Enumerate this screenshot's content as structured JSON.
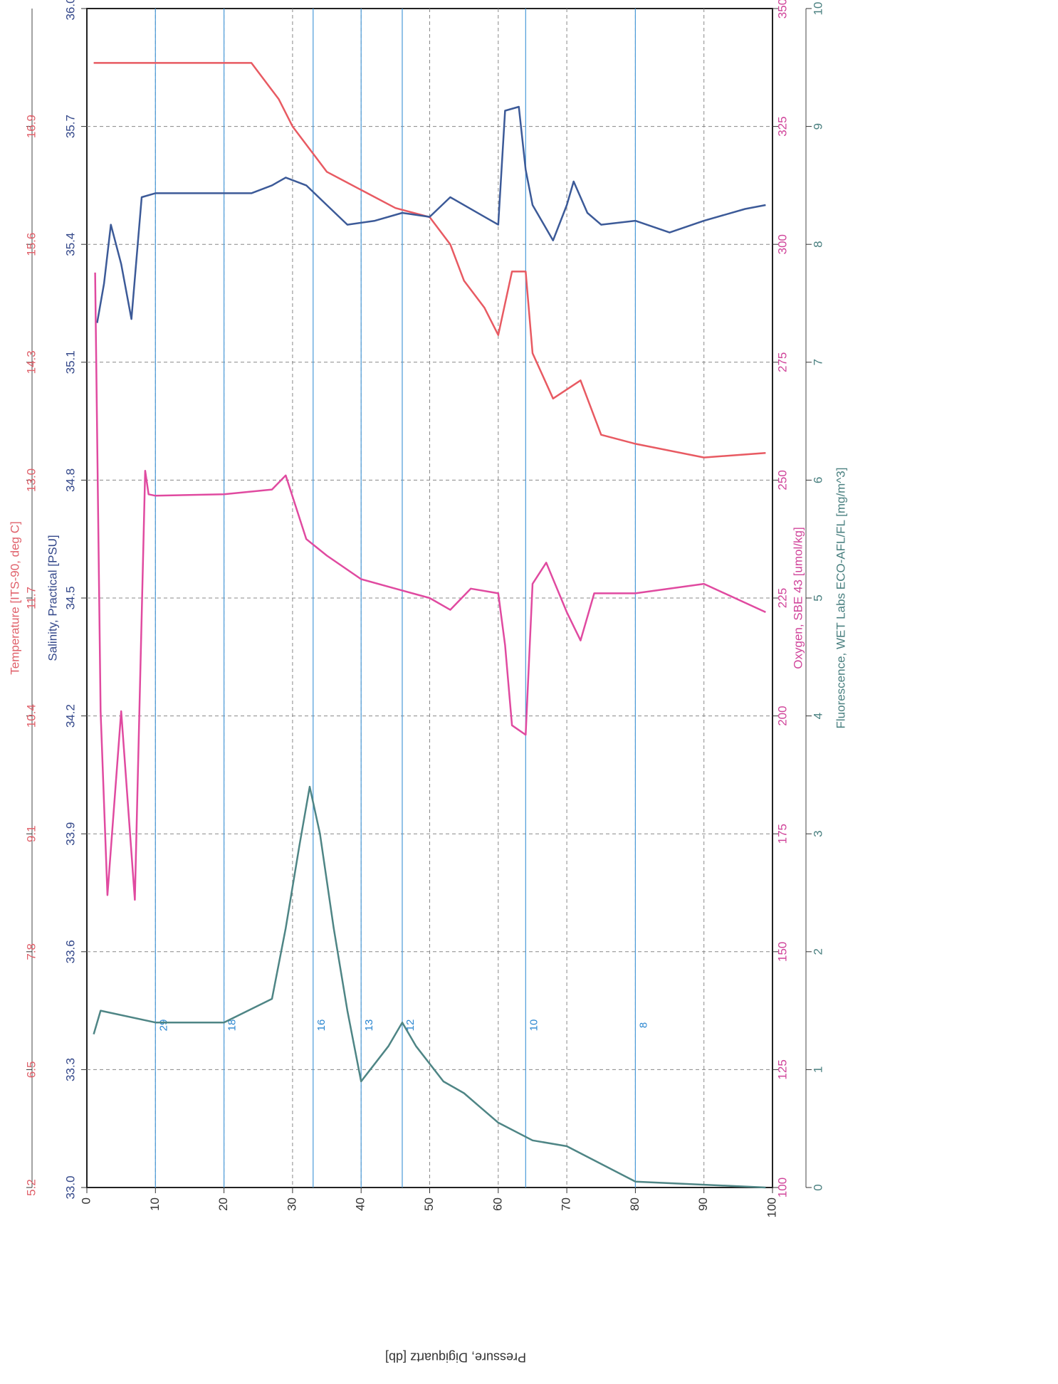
{
  "chart_data": {
    "type": "line",
    "xlabel": "Pressure, Digiquartz [db]",
    "xlim": [
      0,
      100
    ],
    "xticks": [
      0,
      10,
      20,
      30,
      40,
      50,
      60,
      70,
      80,
      90,
      100
    ],
    "grid": true,
    "axes": [
      {
        "label": "Temperature [ITS-90, deg C]",
        "color": "#e0606a",
        "lim": [
          5.2,
          18.2
        ],
        "ticks": [
          5.2,
          6.5,
          7.8,
          9.1,
          10.4,
          11.7,
          {
            "value": 13.0,
            "label": "13.0"
          },
          14.3,
          15.6,
          16.9
        ]
      },
      {
        "label": "Salinity, Practical [PSU]",
        "color": "#34488a",
        "lim": [
          33.0,
          36.0
        ],
        "ticks": [
          {
            "value": 33.0,
            "label": "33.0"
          },
          33.3,
          33.6,
          33.9,
          34.2,
          34.5,
          34.8,
          35.1,
          35.4,
          35.7,
          {
            "value": 36.0,
            "label": "36.0"
          }
        ]
      },
      {
        "label": "Oxygen, SBE 43 [umol/kg]",
        "color": "#d0449a",
        "lim": [
          100,
          350
        ],
        "ticks": [
          100,
          125,
          150,
          175,
          200,
          225,
          250,
          275,
          300,
          325,
          350
        ]
      },
      {
        "label": "Fluorescence, WET Labs ECO-AFL/FL [mg/m^3]",
        "color": "#4a8080",
        "lim": [
          0,
          10
        ],
        "ticks": [
          0,
          1,
          2,
          3,
          4,
          5,
          6,
          7,
          8,
          9,
          10
        ]
      }
    ],
    "series": [
      {
        "name": "Temperature",
        "axis": 0,
        "color": "#e85a62",
        "x": [
          1,
          10,
          24,
          28,
          30,
          35,
          40,
          45,
          50,
          53,
          55,
          58,
          60,
          62,
          64,
          65,
          68,
          72,
          75,
          80,
          90,
          99
        ],
        "values": [
          17.6,
          17.6,
          17.6,
          17.2,
          16.9,
          16.4,
          16.2,
          16.0,
          15.9,
          15.6,
          15.2,
          14.9,
          14.6,
          15.3,
          15.3,
          14.4,
          13.9,
          14.1,
          13.5,
          13.4,
          13.25,
          13.3
        ]
      },
      {
        "name": "Salinity",
        "axis": 1,
        "color": "#3c5a98",
        "x": [
          1.5,
          2.5,
          3.5,
          5,
          6.5,
          8,
          10,
          24,
          27,
          29,
          32,
          35,
          38,
          42,
          46,
          50,
          53,
          58,
          60,
          61,
          63,
          64,
          65,
          68,
          70,
          71,
          73,
          75,
          80,
          85,
          90,
          96,
          99
        ],
        "values": [
          35.2,
          35.3,
          35.45,
          35.35,
          35.21,
          35.52,
          35.53,
          35.53,
          35.55,
          35.57,
          35.55,
          35.5,
          35.45,
          35.46,
          35.48,
          35.47,
          35.52,
          35.47,
          35.45,
          35.74,
          35.75,
          35.59,
          35.5,
          35.41,
          35.5,
          35.56,
          35.48,
          35.45,
          35.46,
          35.43,
          35.46,
          35.49,
          35.5
        ]
      },
      {
        "name": "Oxygen",
        "axis": 2,
        "color": "#e04aa0",
        "x": [
          1.2,
          2,
          3,
          5,
          7,
          8.5,
          9,
          10,
          20,
          27,
          29,
          32,
          35,
          40,
          45,
          50,
          53,
          56,
          60,
          61,
          62,
          64,
          65,
          67,
          70,
          72,
          74,
          80,
          90,
          99
        ],
        "values": [
          294,
          201,
          162,
          201,
          161,
          252,
          247,
          246.7,
          247,
          248,
          251,
          237.5,
          234,
          229,
          227,
          225,
          222.5,
          227,
          226,
          215,
          198,
          196,
          228,
          232.5,
          222,
          216,
          226,
          226,
          228,
          222
        ]
      },
      {
        "name": "Fluorescence",
        "axis": 3,
        "color": "#4e8585",
        "x": [
          1,
          2,
          10,
          20,
          27,
          29,
          31,
          32.5,
          34,
          36,
          38,
          40,
          44,
          46,
          48,
          52,
          55,
          57,
          60,
          65,
          70,
          75,
          80,
          99
        ],
        "values": [
          1.3,
          1.5,
          1.4,
          1.4,
          1.6,
          2.2,
          2.9,
          3.4,
          3.0,
          2.2,
          1.5,
          0.9,
          1.2,
          1.4,
          1.2,
          0.9,
          0.8,
          0.7,
          0.55,
          0.4,
          0.35,
          0.2,
          0.05,
          0.0
        ]
      }
    ],
    "annotations": [
      {
        "text": "29",
        "x": 10
      },
      {
        "text": "18",
        "x": 20
      },
      {
        "text": "16",
        "x": 33
      },
      {
        "text": "13",
        "x": 40
      },
      {
        "text": "12",
        "x": 46
      },
      {
        "text": "10",
        "x": 64
      },
      {
        "text": "8",
        "x": 80
      }
    ]
  }
}
